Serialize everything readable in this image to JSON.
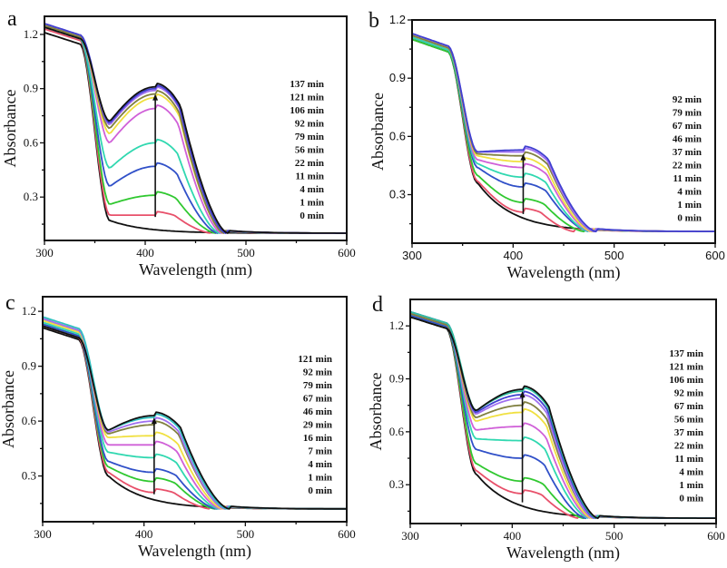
{
  "figure": {
    "panels": [
      "a",
      "b",
      "c",
      "d"
    ]
  },
  "chart_data": [
    {
      "panel": "a",
      "type": "line",
      "title": "",
      "xlabel": "Wavelength (nm)",
      "ylabel": "Absorbance",
      "xlim": [
        300,
        600
      ],
      "ylim": [
        0.06,
        1.3
      ],
      "xticks": [
        300,
        400,
        500,
        600
      ],
      "xtick_labels": [
        "300",
        "400",
        "500",
        "600"
      ],
      "yticks": [
        0.3,
        0.6,
        0.9,
        1.2
      ],
      "ytick_labels": [
        "0.3",
        "0.6",
        "0.9",
        "1.2"
      ],
      "grid": false,
      "legend_position": "right",
      "arrow": {
        "x": 410,
        "from": 0.19,
        "to": 0.87
      },
      "series": [
        {
          "name": "0 min",
          "color": "#111111",
          "min_at_360": 0.17,
          "peak": 0.15,
          "shoulder_end": 380,
          "base": 0.1,
          "start": 1.21
        },
        {
          "name": "1 min",
          "color": "#e8506a",
          "min_at_360": 0.2,
          "peak": 0.2,
          "shoulder_end": 445,
          "base": 0.1,
          "start": 1.23
        },
        {
          "name": "4 min",
          "color": "#30c830",
          "min_at_360": 0.26,
          "peak": 0.31,
          "shoulder_end": 450,
          "base": 0.1,
          "start": 1.24
        },
        {
          "name": "11 min",
          "color": "#3050c8",
          "min_at_360": 0.36,
          "peak": 0.47,
          "shoulder_end": 452,
          "base": 0.1,
          "start": 1.24
        },
        {
          "name": "22 min",
          "color": "#30d8b0",
          "min_at_360": 0.46,
          "peak": 0.6,
          "shoulder_end": 454,
          "base": 0.1,
          "start": 1.24
        },
        {
          "name": "56 min",
          "color": "#d060d8",
          "min_at_360": 0.6,
          "peak": 0.79,
          "shoulder_end": 456,
          "base": 0.1,
          "start": 1.25
        },
        {
          "name": "79 min",
          "color": "#f0e040",
          "min_at_360": 0.65,
          "peak": 0.85,
          "shoulder_end": 458,
          "base": 0.1,
          "start": 1.25
        },
        {
          "name": "92 min",
          "color": "#808040",
          "min_at_360": 0.68,
          "peak": 0.87,
          "shoulder_end": 458,
          "base": 0.1,
          "start": 1.25
        },
        {
          "name": "106 min",
          "color": "#a070f0",
          "min_at_360": 0.7,
          "peak": 0.89,
          "shoulder_end": 460,
          "base": 0.1,
          "start": 1.26
        },
        {
          "name": "121 min",
          "color": "#4040d0",
          "min_at_360": 0.71,
          "peak": 0.9,
          "shoulder_end": 460,
          "base": 0.1,
          "start": 1.26
        },
        {
          "name": "137 min",
          "color": "#111111",
          "min_at_360": 0.72,
          "peak": 0.91,
          "shoulder_end": 462,
          "base": 0.1,
          "start": 1.24
        }
      ]
    },
    {
      "panel": "b",
      "type": "line",
      "title": "",
      "xlabel": "Wavelength (nm)",
      "ylabel": "Absorbance",
      "xlim": [
        300,
        600
      ],
      "ylim": [
        0.05,
        1.2
      ],
      "xticks": [
        300,
        400,
        500,
        600
      ],
      "xtick_labels": [
        "300",
        "400",
        "500",
        "600"
      ],
      "yticks": [
        0.3,
        0.6,
        0.9,
        1.2
      ],
      "ytick_labels": [
        "0.3",
        "0.6",
        "0.9",
        "1.2"
      ],
      "grid": false,
      "legend_position": "right",
      "arrow": {
        "x": 410,
        "from": 0.2,
        "to": 0.51
      },
      "series": [
        {
          "name": "0 min",
          "color": "#111111",
          "min_at_360": 0.36,
          "peak": 0.18,
          "shoulder_end": 430,
          "base": 0.11,
          "start": 1.1
        },
        {
          "name": "1 min",
          "color": "#e8506a",
          "min_at_360": 0.37,
          "peak": 0.21,
          "shoulder_end": 440,
          "base": 0.11,
          "start": 1.11
        },
        {
          "name": "4 min",
          "color": "#30c830",
          "min_at_360": 0.4,
          "peak": 0.26,
          "shoulder_end": 450,
          "base": 0.11,
          "start": 1.1
        },
        {
          "name": "11 min",
          "color": "#3050c8",
          "min_at_360": 0.44,
          "peak": 0.34,
          "shoulder_end": 455,
          "base": 0.11,
          "start": 1.11
        },
        {
          "name": "22 min",
          "color": "#30d8b0",
          "min_at_360": 0.46,
          "peak": 0.39,
          "shoulder_end": 455,
          "base": 0.11,
          "start": 1.11
        },
        {
          "name": "37 min",
          "color": "#d060d8",
          "min_at_360": 0.48,
          "peak": 0.44,
          "shoulder_end": 457,
          "base": 0.11,
          "start": 1.12
        },
        {
          "name": "46 min",
          "color": "#f0e040",
          "min_at_360": 0.5,
          "peak": 0.47,
          "shoulder_end": 458,
          "base": 0.11,
          "start": 1.12
        },
        {
          "name": "67 min",
          "color": "#808040",
          "min_at_360": 0.51,
          "peak": 0.5,
          "shoulder_end": 460,
          "base": 0.11,
          "start": 1.12
        },
        {
          "name": "79 min",
          "color": "#a070f0",
          "min_at_360": 0.52,
          "peak": 0.52,
          "shoulder_end": 460,
          "base": 0.11,
          "start": 1.13
        },
        {
          "name": "92 min",
          "color": "#4040d0",
          "min_at_360": 0.52,
          "peak": 0.53,
          "shoulder_end": 462,
          "base": 0.11,
          "start": 1.13
        }
      ]
    },
    {
      "panel": "c",
      "type": "line",
      "title": "",
      "xlabel": "Wavelength (nm)",
      "ylabel": "Absorbance",
      "xlim": [
        300,
        600
      ],
      "ylim": [
        0.05,
        1.28
      ],
      "xticks": [
        300,
        400,
        500,
        600
      ],
      "xtick_labels": [
        "300",
        "400",
        "500",
        "600"
      ],
      "yticks": [
        0.3,
        0.6,
        0.9,
        1.2
      ],
      "ytick_labels": [
        "0.3",
        "0.6",
        "0.9",
        "1.2"
      ],
      "grid": false,
      "legend_position": "right",
      "arrow": {
        "x": 410,
        "from": 0.2,
        "to": 0.62
      },
      "series": [
        {
          "name": "0 min",
          "color": "#111111",
          "min_at_360": 0.3,
          "peak": 0.17,
          "shoulder_end": 430,
          "base": 0.12,
          "start": 1.11
        },
        {
          "name": "1 min",
          "color": "#e8506a",
          "min_at_360": 0.32,
          "peak": 0.21,
          "shoulder_end": 445,
          "base": 0.12,
          "start": 1.12
        },
        {
          "name": "4 min",
          "color": "#30c830",
          "min_at_360": 0.35,
          "peak": 0.27,
          "shoulder_end": 450,
          "base": 0.12,
          "start": 1.13
        },
        {
          "name": "7 min",
          "color": "#3050c8",
          "min_at_360": 0.38,
          "peak": 0.32,
          "shoulder_end": 452,
          "base": 0.12,
          "start": 1.13
        },
        {
          "name": "16 min",
          "color": "#30d8b0",
          "min_at_360": 0.43,
          "peak": 0.4,
          "shoulder_end": 454,
          "base": 0.12,
          "start": 1.14
        },
        {
          "name": "29 min",
          "color": "#d060d8",
          "min_at_360": 0.47,
          "peak": 0.47,
          "shoulder_end": 456,
          "base": 0.12,
          "start": 1.15
        },
        {
          "name": "46 min",
          "color": "#f0e040",
          "min_at_360": 0.51,
          "peak": 0.52,
          "shoulder_end": 458,
          "base": 0.12,
          "start": 1.15
        },
        {
          "name": "67 min",
          "color": "#808040",
          "min_at_360": 0.53,
          "peak": 0.58,
          "shoulder_end": 460,
          "base": 0.12,
          "start": 1.16
        },
        {
          "name": "79 min",
          "color": "#a070f0",
          "min_at_360": 0.54,
          "peak": 0.6,
          "shoulder_end": 460,
          "base": 0.12,
          "start": 1.16
        },
        {
          "name": "92 min",
          "color": "#30c0c0",
          "min_at_360": 0.55,
          "peak": 0.62,
          "shoulder_end": 462,
          "base": 0.12,
          "start": 1.17
        },
        {
          "name": "121 min",
          "color": "#111111",
          "min_at_360": 0.55,
          "peak": 0.63,
          "shoulder_end": 464,
          "base": 0.12,
          "start": 1.12
        }
      ]
    },
    {
      "panel": "d",
      "type": "line",
      "title": "",
      "xlabel": "Wavelength (nm)",
      "ylabel": "Absorbance",
      "xlim": [
        300,
        600
      ],
      "ylim": [
        0.08,
        1.35
      ],
      "xticks": [
        300,
        400,
        500,
        600
      ],
      "xtick_labels": [
        "300",
        "400",
        "500",
        "600"
      ],
      "yticks": [
        0.3,
        0.6,
        0.9,
        1.2
      ],
      "ytick_labels": [
        "0.3",
        "0.6",
        "0.9",
        "1.2"
      ],
      "grid": false,
      "legend_position": "right",
      "arrow": {
        "x": 410,
        "from": 0.2,
        "to": 0.83
      },
      "series": [
        {
          "name": "0 min",
          "color": "#111111",
          "min_at_360": 0.36,
          "peak": 0.18,
          "shoulder_end": 430,
          "base": 0.11,
          "start": 1.25
        },
        {
          "name": "1 min",
          "color": "#e8506a",
          "min_at_360": 0.38,
          "peak": 0.25,
          "shoulder_end": 445,
          "base": 0.11,
          "start": 1.26
        },
        {
          "name": "4 min",
          "color": "#30c830",
          "min_at_360": 0.42,
          "peak": 0.32,
          "shoulder_end": 450,
          "base": 0.11,
          "start": 1.26
        },
        {
          "name": "11 min",
          "color": "#3050c8",
          "min_at_360": 0.5,
          "peak": 0.45,
          "shoulder_end": 452,
          "base": 0.11,
          "start": 1.26
        },
        {
          "name": "22 min",
          "color": "#30d8b0",
          "min_at_360": 0.56,
          "peak": 0.55,
          "shoulder_end": 455,
          "base": 0.11,
          "start": 1.27
        },
        {
          "name": "37 min",
          "color": "#d060d8",
          "min_at_360": 0.61,
          "peak": 0.63,
          "shoulder_end": 457,
          "base": 0.11,
          "start": 1.27
        },
        {
          "name": "56 min",
          "color": "#f0e040",
          "min_at_360": 0.66,
          "peak": 0.71,
          "shoulder_end": 458,
          "base": 0.11,
          "start": 1.27
        },
        {
          "name": "67 min",
          "color": "#808040",
          "min_at_360": 0.68,
          "peak": 0.75,
          "shoulder_end": 460,
          "base": 0.11,
          "start": 1.27
        },
        {
          "name": "92 min",
          "color": "#a070f0",
          "min_at_360": 0.7,
          "peak": 0.79,
          "shoulder_end": 460,
          "base": 0.11,
          "start": 1.28
        },
        {
          "name": "106 min",
          "color": "#4040d0",
          "min_at_360": 0.71,
          "peak": 0.81,
          "shoulder_end": 462,
          "base": 0.11,
          "start": 1.28
        },
        {
          "name": "121 min",
          "color": "#30c0a0",
          "min_at_360": 0.72,
          "peak": 0.83,
          "shoulder_end": 463,
          "base": 0.11,
          "start": 1.28
        },
        {
          "name": "137 min",
          "color": "#111111",
          "min_at_360": 0.72,
          "peak": 0.84,
          "shoulder_end": 464,
          "base": 0.11,
          "start": 1.25
        }
      ]
    }
  ]
}
